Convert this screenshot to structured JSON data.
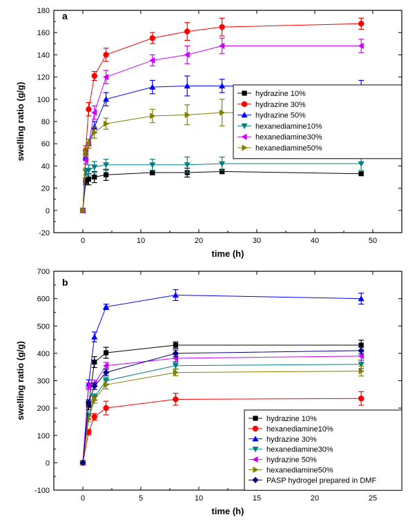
{
  "chart_data": [
    {
      "type": "line",
      "panel_label": "a",
      "xlabel": "time (h)",
      "ylabel": "swelling ratio (g/g)",
      "xlim": [
        -5,
        55
      ],
      "ylim": [
        -20,
        180
      ],
      "xticks": [
        0,
        10,
        20,
        30,
        40,
        50
      ],
      "yticks": [
        -20,
        0,
        20,
        40,
        60,
        80,
        100,
        120,
        140,
        160,
        180
      ],
      "legend_position": "right",
      "series": [
        {
          "name": "hydrazine 10%",
          "color": "#000000",
          "marker": "square",
          "x": [
            0,
            0.5,
            1,
            2,
            4,
            12,
            18,
            24,
            48
          ],
          "y": [
            0,
            26,
            28,
            30,
            32,
            34,
            34,
            35,
            33
          ],
          "err": [
            0,
            3,
            5,
            5,
            5,
            2,
            4,
            2,
            1
          ]
        },
        {
          "name": "hydrazine 30%",
          "color": "#ff0000",
          "marker": "circle",
          "x": [
            0,
            0.5,
            1,
            2,
            4,
            12,
            18,
            24,
            48
          ],
          "y": [
            0,
            54,
            91,
            121,
            140,
            155,
            161,
            165,
            168
          ],
          "err": [
            0,
            4,
            6,
            4,
            6,
            5,
            8,
            8,
            5
          ]
        },
        {
          "name": "hydrazine 50%",
          "color": "#0000ff",
          "marker": "triangle-up",
          "x": [
            0,
            0.5,
            1,
            2,
            4,
            12,
            18,
            24,
            48
          ],
          "y": [
            0,
            48,
            60,
            75,
            100,
            111,
            112,
            112,
            110
          ],
          "err": [
            0,
            3,
            4,
            5,
            6,
            6,
            9,
            6,
            7
          ]
        },
        {
          "name": "hexanediamine10%",
          "color": "#008080",
          "marker": "triangle-down",
          "x": [
            0,
            0.5,
            1,
            2,
            4,
            12,
            18,
            24,
            48
          ],
          "y": [
            0,
            35,
            36,
            39,
            41,
            41,
            41,
            42,
            42
          ],
          "err": [
            0,
            3,
            5,
            5,
            5,
            5,
            7,
            6,
            6
          ]
        },
        {
          "name": "hexanediamine30%",
          "color": "#cc00ff",
          "marker": "triangle-left",
          "x": [
            0,
            0.5,
            1,
            2,
            4,
            12,
            18,
            24,
            48
          ],
          "y": [
            0,
            45,
            60,
            88,
            120,
            135,
            140,
            148,
            148
          ],
          "err": [
            0,
            3,
            4,
            6,
            6,
            5,
            8,
            7,
            6
          ]
        },
        {
          "name": "hexanediamine50%",
          "color": "#808000",
          "marker": "triangle-right",
          "x": [
            0,
            0.5,
            1,
            2,
            4,
            12,
            18,
            24,
            48
          ],
          "y": [
            0,
            52,
            60,
            70,
            78,
            85,
            86,
            88,
            88
          ],
          "err": [
            0,
            3,
            4,
            5,
            5,
            6,
            9,
            12,
            10
          ]
        }
      ]
    },
    {
      "type": "line",
      "panel_label": "b",
      "xlabel": "time (h)",
      "ylabel": "swelling ratio (g/g)",
      "xlim": [
        -2.5,
        27.5
      ],
      "ylim": [
        -100,
        700
      ],
      "xticks": [
        0,
        5,
        10,
        15,
        20,
        25
      ],
      "yticks": [
        -100,
        0,
        100,
        200,
        300,
        400,
        500,
        600,
        700
      ],
      "legend_position": "bottom-right",
      "series": [
        {
          "name": "hydrazine 10%",
          "color": "#000000",
          "marker": "square",
          "x": [
            0,
            0.5,
            1,
            2,
            8,
            24
          ],
          "y": [
            0,
            210,
            368,
            402,
            430,
            430
          ],
          "err": [
            0,
            15,
            20,
            20,
            12,
            18
          ]
        },
        {
          "name": "hexanediamine10%",
          "color": "#ff0000",
          "marker": "circle",
          "x": [
            0,
            0.5,
            1,
            2,
            8,
            24
          ],
          "y": [
            0,
            112,
            168,
            200,
            232,
            235
          ],
          "err": [
            0,
            10,
            12,
            25,
            22,
            25
          ]
        },
        {
          "name": "hydrazine 30%",
          "color": "#0000ff",
          "marker": "triangle-up",
          "x": [
            0,
            0.5,
            1,
            2,
            8,
            24
          ],
          "y": [
            0,
            288,
            460,
            570,
            613,
            600
          ],
          "err": [
            0,
            15,
            18,
            10,
            20,
            20
          ]
        },
        {
          "name": "hexanediamine30%",
          "color": "#008080",
          "marker": "triangle-down",
          "x": [
            0,
            0.5,
            1,
            2,
            8,
            24
          ],
          "y": [
            0,
            170,
            240,
            300,
            355,
            360
          ],
          "err": [
            0,
            10,
            12,
            12,
            12,
            15
          ]
        },
        {
          "name": "hydrazine 50%",
          "color": "#cc00ff",
          "marker": "triangle-left",
          "x": [
            0,
            0.5,
            1,
            2,
            8,
            24
          ],
          "y": [
            0,
            280,
            290,
            355,
            382,
            390
          ],
          "err": [
            0,
            12,
            12,
            12,
            12,
            15
          ]
        },
        {
          "name": "hexanediamine50%",
          "color": "#808000",
          "marker": "triangle-right",
          "x": [
            0,
            0.5,
            1,
            2,
            8,
            24
          ],
          "y": [
            0,
            160,
            230,
            285,
            330,
            335
          ],
          "err": [
            0,
            10,
            12,
            15,
            12,
            18
          ]
        },
        {
          "name": "PASP hydrogel prepared in DMF",
          "color": "#000080",
          "marker": "diamond",
          "x": [
            0,
            0.5,
            1,
            2,
            8,
            24
          ],
          "y": [
            0,
            220,
            280,
            330,
            400,
            410
          ],
          "err": [
            0,
            10,
            12,
            12,
            12,
            12
          ]
        }
      ]
    }
  ]
}
